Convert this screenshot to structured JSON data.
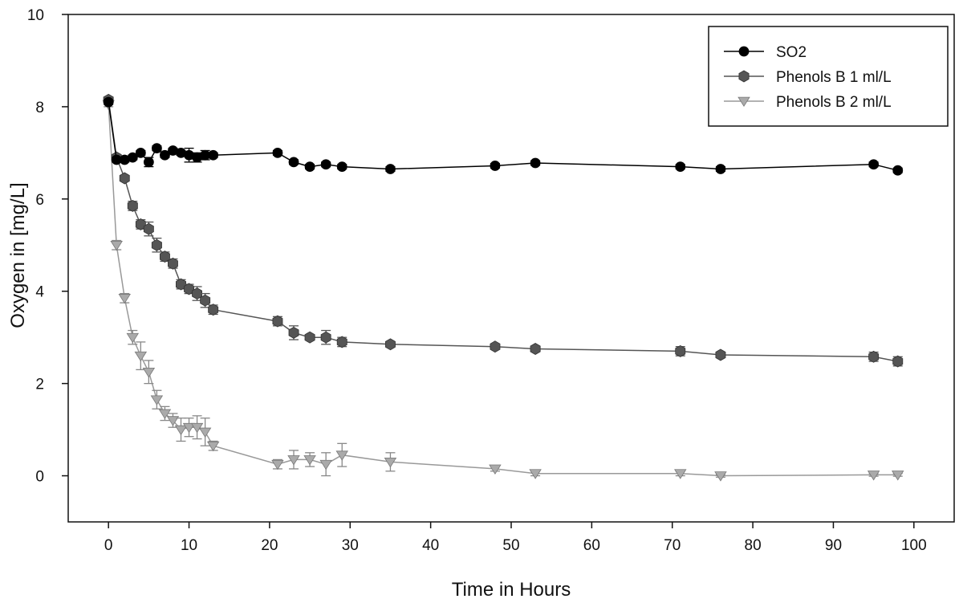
{
  "chart_data": {
    "type": "line",
    "xlabel": "Time in Hours",
    "ylabel": "Oxygen in [mg/L]",
    "xlim": [
      -5,
      105
    ],
    "ylim": [
      -1,
      10
    ],
    "x_ticks": [
      0,
      10,
      20,
      30,
      40,
      50,
      60,
      70,
      80,
      90,
      100
    ],
    "y_ticks": [
      0,
      2,
      4,
      6,
      8,
      10
    ],
    "grid": false,
    "legend_position": "top-right",
    "series": [
      {
        "name": "SO2",
        "marker": "circle",
        "color": "#000000",
        "points": [
          [
            0,
            8.1,
            0.05
          ],
          [
            1,
            6.85,
            0.05
          ],
          [
            2,
            6.85,
            0.05
          ],
          [
            3,
            6.9,
            0.05
          ],
          [
            4,
            7.0,
            0.05
          ],
          [
            5,
            6.8,
            0.1
          ],
          [
            6,
            7.1,
            0.05
          ],
          [
            7,
            6.95,
            0.05
          ],
          [
            8,
            7.05,
            0.05
          ],
          [
            9,
            7.0,
            0.05
          ],
          [
            10,
            6.95,
            0.15
          ],
          [
            11,
            6.9,
            0.1
          ],
          [
            12,
            6.95,
            0.1
          ],
          [
            13,
            6.95,
            0.05
          ],
          [
            21,
            7.0,
            0.05
          ],
          [
            23,
            6.8,
            0.05
          ],
          [
            25,
            6.7,
            0.05
          ],
          [
            27,
            6.75,
            0.05
          ],
          [
            29,
            6.7,
            0.05
          ],
          [
            35,
            6.65,
            0.05
          ],
          [
            48,
            6.72,
            0.05
          ],
          [
            53,
            6.78,
            0.05
          ],
          [
            71,
            6.7,
            0.05
          ],
          [
            76,
            6.65,
            0.05
          ],
          [
            95,
            6.75,
            0.05
          ],
          [
            98,
            6.62,
            0.05
          ]
        ]
      },
      {
        "name": "Phenols B 1 ml/L",
        "marker": "hexagon",
        "color": "#555555",
        "points": [
          [
            0,
            8.15,
            0.05
          ],
          [
            1,
            6.9,
            0.05
          ],
          [
            2,
            6.45,
            0.05
          ],
          [
            3,
            5.85,
            0.1
          ],
          [
            4,
            5.45,
            0.1
          ],
          [
            5,
            5.35,
            0.15
          ],
          [
            6,
            5.0,
            0.15
          ],
          [
            7,
            4.75,
            0.1
          ],
          [
            8,
            4.6,
            0.1
          ],
          [
            9,
            4.15,
            0.1
          ],
          [
            10,
            4.05,
            0.1
          ],
          [
            11,
            3.95,
            0.15
          ],
          [
            12,
            3.8,
            0.15
          ],
          [
            13,
            3.6,
            0.1
          ],
          [
            21,
            3.35,
            0.1
          ],
          [
            23,
            3.1,
            0.15
          ],
          [
            25,
            3.0,
            0.05
          ],
          [
            27,
            3.0,
            0.15
          ],
          [
            29,
            2.9,
            0.1
          ],
          [
            35,
            2.85,
            0.05
          ],
          [
            48,
            2.8,
            0.05
          ],
          [
            53,
            2.75,
            0.05
          ],
          [
            71,
            2.7,
            0.1
          ],
          [
            76,
            2.62,
            0.05
          ],
          [
            95,
            2.58,
            0.1
          ],
          [
            98,
            2.48,
            0.1
          ]
        ]
      },
      {
        "name": "Phenols B 2 ml/L",
        "marker": "triangle-down",
        "color": "#aaaaaa",
        "points": [
          [
            0,
            8.05,
            0.05
          ],
          [
            1,
            5.0,
            0.1
          ],
          [
            2,
            3.85,
            0.1
          ],
          [
            3,
            3.0,
            0.15
          ],
          [
            4,
            2.6,
            0.3
          ],
          [
            5,
            2.25,
            0.25
          ],
          [
            6,
            1.65,
            0.2
          ],
          [
            7,
            1.35,
            0.15
          ],
          [
            8,
            1.2,
            0.15
          ],
          [
            9,
            1.0,
            0.25
          ],
          [
            10,
            1.05,
            0.2
          ],
          [
            11,
            1.05,
            0.25
          ],
          [
            12,
            0.95,
            0.3
          ],
          [
            13,
            0.65,
            0.1
          ],
          [
            21,
            0.25,
            0.1
          ],
          [
            23,
            0.35,
            0.2
          ],
          [
            25,
            0.35,
            0.15
          ],
          [
            27,
            0.25,
            0.25
          ],
          [
            29,
            0.45,
            0.25
          ],
          [
            35,
            0.3,
            0.2
          ],
          [
            48,
            0.15,
            0.05
          ],
          [
            53,
            0.05,
            0.05
          ],
          [
            71,
            0.05,
            0.05
          ],
          [
            76,
            0.0,
            0.03
          ],
          [
            95,
            0.02,
            0.03
          ],
          [
            98,
            0.02,
            0.03
          ]
        ]
      }
    ]
  }
}
